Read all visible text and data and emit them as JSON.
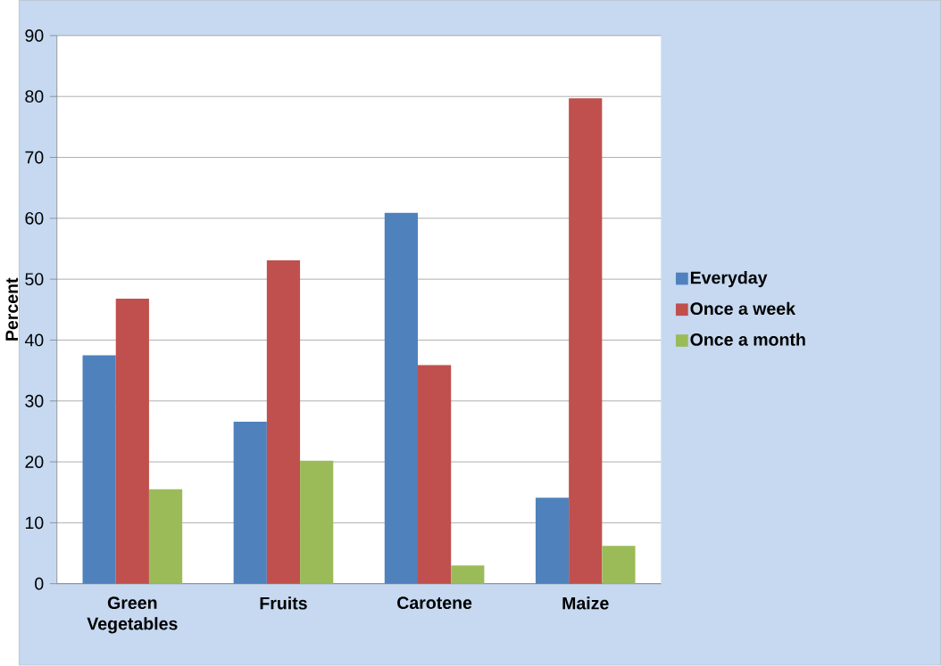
{
  "chart_data": {
    "type": "bar",
    "ylabel": "Percent",
    "categories": [
      "Green Vegetables",
      "Fruits",
      "Carotene",
      "Maize"
    ],
    "series": [
      {
        "name": "Everyday",
        "color": "#4f81bd",
        "values": [
          37.5,
          26.6,
          60.9,
          14.1
        ]
      },
      {
        "name": "Once a week",
        "color": "#c0504d",
        "values": [
          46.8,
          53.1,
          35.9,
          79.7
        ]
      },
      {
        "name": "Once a month",
        "color": "#9bbb59",
        "values": [
          15.5,
          20.2,
          3.0,
          6.2
        ]
      }
    ],
    "ylim": [
      0,
      90
    ],
    "yticks": [
      0,
      10,
      20,
      30,
      40,
      50,
      60,
      70,
      80,
      90
    ],
    "grid": "y",
    "legend": "right"
  }
}
